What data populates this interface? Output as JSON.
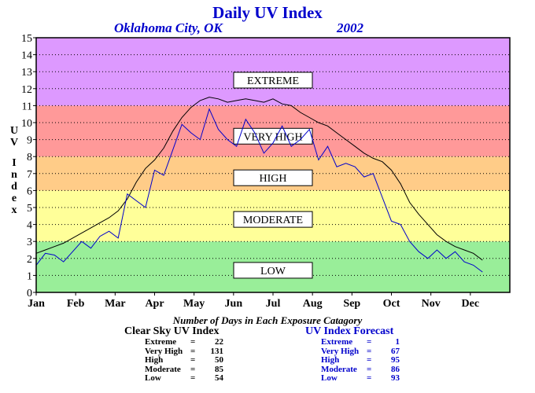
{
  "chart_data": {
    "type": "line",
    "title": "Daily UV Index",
    "location": "Oklahoma City, OK",
    "year": "2002",
    "ylabel": "UV Index",
    "xlabel": "",
    "ylim": [
      0,
      15
    ],
    "yticks": [
      0,
      1,
      2,
      3,
      4,
      5,
      6,
      7,
      8,
      9,
      10,
      11,
      12,
      13,
      14,
      15
    ],
    "x_categories": [
      "Jan",
      "Feb",
      "Mar",
      "Apr",
      "May",
      "Jun",
      "Jul",
      "Aug",
      "Sep",
      "Oct",
      "Nov",
      "Dec"
    ],
    "grid": true,
    "bands": [
      {
        "label": "LOW",
        "from": 0,
        "to": 3,
        "color": "#99ee99"
      },
      {
        "label": "MODERATE",
        "from": 3,
        "to": 6,
        "color": "#ffff99"
      },
      {
        "label": "HIGH",
        "from": 6,
        "to": 8,
        "color": "#ffcc88"
      },
      {
        "label": "VERY HIGH",
        "from": 8,
        "to": 11,
        "color": "#ff9999"
      },
      {
        "label": "EXTREME",
        "from": 11,
        "to": 15,
        "color": "#dd99ff"
      }
    ],
    "band_label_positions": [
      {
        "label": "EXTREME",
        "y": 12.5
      },
      {
        "label": "VERY HIGH",
        "y": 9.2
      },
      {
        "label": "HIGH",
        "y": 6.75
      },
      {
        "label": "MODERATE",
        "y": 4.3
      },
      {
        "label": "LOW",
        "y": 1.3
      }
    ],
    "series": [
      {
        "name": "Clear Sky UV Index",
        "color": "#000000",
        "x": [
          1,
          8,
          15,
          22,
          29,
          36,
          43,
          50,
          57,
          64,
          71,
          78,
          85,
          92,
          99,
          106,
          113,
          120,
          127,
          134,
          141,
          148,
          155,
          162,
          169,
          176,
          183,
          190,
          197,
          204,
          211,
          218,
          225,
          232,
          239,
          246,
          253,
          260,
          267,
          274,
          281,
          288,
          295,
          302,
          309,
          316,
          323,
          330,
          337,
          344
        ],
        "values": [
          2.3,
          2.5,
          2.7,
          2.9,
          3.2,
          3.5,
          3.8,
          4.1,
          4.4,
          4.8,
          5.5,
          6.5,
          7.3,
          7.8,
          8.5,
          9.5,
          10.3,
          10.9,
          11.3,
          11.5,
          11.4,
          11.2,
          11.3,
          11.4,
          11.3,
          11.2,
          11.4,
          11.1,
          11.0,
          10.6,
          10.3,
          10.0,
          9.8,
          9.4,
          9.0,
          8.6,
          8.2,
          7.9,
          7.7,
          7.2,
          6.4,
          5.3,
          4.6,
          4.0,
          3.4,
          3.0,
          2.7,
          2.5,
          2.3,
          1.9
        ]
      },
      {
        "name": "UV Index Forecast",
        "color": "#0000cc",
        "x": [
          1,
          8,
          15,
          22,
          29,
          36,
          43,
          50,
          57,
          64,
          71,
          78,
          85,
          92,
          99,
          106,
          113,
          120,
          127,
          134,
          141,
          148,
          155,
          162,
          169,
          176,
          183,
          190,
          197,
          204,
          211,
          218,
          225,
          232,
          239,
          246,
          253,
          260,
          267,
          274,
          281,
          288,
          295,
          302,
          309,
          316,
          323,
          330,
          337,
          344
        ],
        "values": [
          1.6,
          2.3,
          2.2,
          1.8,
          2.4,
          3.0,
          2.6,
          3.3,
          3.6,
          3.2,
          5.8,
          5.4,
          5.0,
          7.2,
          6.9,
          8.4,
          9.9,
          9.4,
          9.0,
          10.8,
          9.6,
          9.0,
          8.6,
          10.2,
          9.4,
          8.2,
          8.8,
          9.8,
          8.6,
          9.0,
          9.6,
          7.8,
          8.6,
          7.4,
          7.6,
          7.4,
          6.8,
          7.0,
          5.6,
          4.2,
          4.0,
          3.0,
          2.4,
          2.0,
          2.5,
          2.0,
          2.4,
          1.8,
          1.6,
          1.2
        ]
      }
    ],
    "stats_title": "Number of Days in Each Exposure Catagory",
    "stats": [
      {
        "heading": "Clear Sky UV Index",
        "rows": [
          {
            "label": "Extreme",
            "eq": "=",
            "value": "22"
          },
          {
            "label": "Very High",
            "eq": "=",
            "value": "131"
          },
          {
            "label": "High",
            "eq": "=",
            "value": "50"
          },
          {
            "label": "Moderate",
            "eq": "=",
            "value": "85"
          },
          {
            "label": "Low",
            "eq": "=",
            "value": "54"
          }
        ]
      },
      {
        "heading": "UV Index Forecast",
        "rows": [
          {
            "label": "Extreme",
            "eq": "=",
            "value": "1"
          },
          {
            "label": "Very High",
            "eq": "=",
            "value": "67"
          },
          {
            "label": "High",
            "eq": "=",
            "value": "95"
          },
          {
            "label": "Moderate",
            "eq": "=",
            "value": "86"
          },
          {
            "label": "Low",
            "eq": "=",
            "value": "93"
          }
        ]
      }
    ]
  }
}
